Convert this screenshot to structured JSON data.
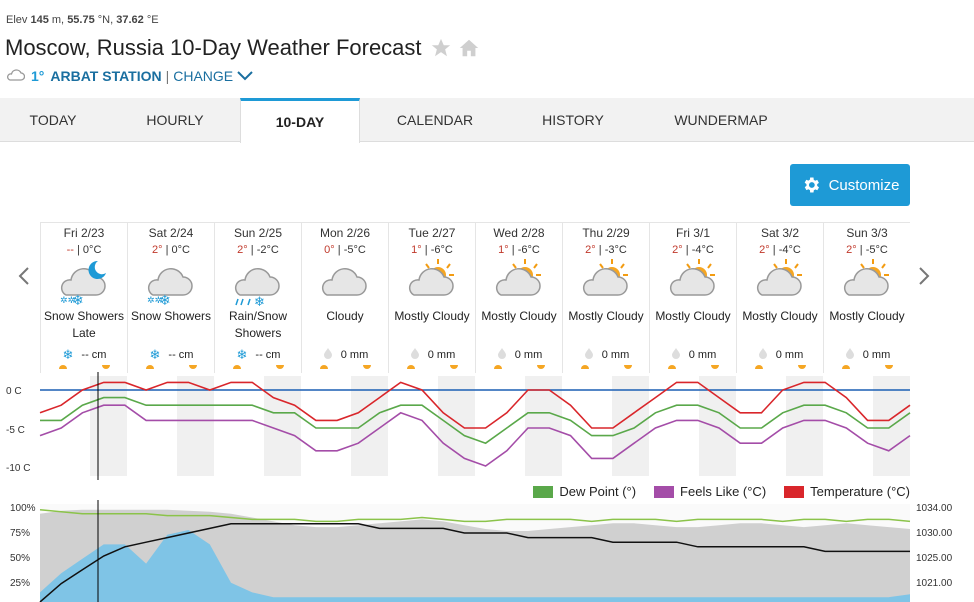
{
  "header": {
    "elev_label": "Elev",
    "elev_value": "145",
    "elev_unit": "m,",
    "lat": "55.75",
    "lat_unit": "°N,",
    "lon": "37.62",
    "lon_unit": "°E",
    "title": "Moscow, Russia 10-Day Weather Forecast",
    "current_temp": "1°",
    "station": "ARBAT STATION",
    "separator": "|",
    "change": "CHANGE"
  },
  "tabs": [
    {
      "label": "TODAY",
      "active": false
    },
    {
      "label": "HOURLY",
      "active": false
    },
    {
      "label": "10-DAY",
      "active": true
    },
    {
      "label": "CALENDAR",
      "active": false
    },
    {
      "label": "HISTORY",
      "active": false
    },
    {
      "label": "WUNDERMAP",
      "active": false
    }
  ],
  "customize_label": "Customize",
  "days": [
    {
      "date": "Fri 2/23",
      "hi": "--",
      "lo": "0°C",
      "icon": "snow-night-icon",
      "cond": "Snow Showers Late",
      "precip_icon": "snowflake-icon",
      "precip": "-- cm"
    },
    {
      "date": "Sat 2/24",
      "hi": "2°",
      "lo": "0°C",
      "icon": "snow-showers-icon",
      "cond": "Snow Showers",
      "precip_icon": "snowflake-icon",
      "precip": "-- cm"
    },
    {
      "date": "Sun 2/25",
      "hi": "2°",
      "lo": "-2°C",
      "icon": "rain-snow-icon",
      "cond": "Rain/Snow Showers",
      "precip_icon": "snowflake-icon",
      "precip": "-- cm"
    },
    {
      "date": "Mon 2/26",
      "hi": "0°",
      "lo": "-5°C",
      "icon": "cloudy-icon",
      "cond": "Cloudy",
      "precip_icon": "raindrop-icon",
      "precip": "0 mm"
    },
    {
      "date": "Tue 2/27",
      "hi": "1°",
      "lo": "-6°C",
      "icon": "mostly-cloudy-icon",
      "cond": "Mostly Cloudy",
      "precip_icon": "raindrop-icon",
      "precip": "0 mm"
    },
    {
      "date": "Wed 2/28",
      "hi": "1°",
      "lo": "-6°C",
      "icon": "mostly-cloudy-icon",
      "cond": "Mostly Cloudy",
      "precip_icon": "raindrop-icon",
      "precip": "0 mm"
    },
    {
      "date": "Thu 2/29",
      "hi": "2°",
      "lo": "-3°C",
      "icon": "mostly-cloudy-icon",
      "cond": "Mostly Cloudy",
      "precip_icon": "raindrop-icon",
      "precip": "0 mm"
    },
    {
      "date": "Fri 3/1",
      "hi": "2°",
      "lo": "-4°C",
      "icon": "mostly-cloudy-icon",
      "cond": "Mostly Cloudy",
      "precip_icon": "raindrop-icon",
      "precip": "0 mm"
    },
    {
      "date": "Sat 3/2",
      "hi": "2°",
      "lo": "-4°C",
      "icon": "mostly-cloudy-icon",
      "cond": "Mostly Cloudy",
      "precip_icon": "raindrop-icon",
      "precip": "0 mm"
    },
    {
      "date": "Sun 3/3",
      "hi": "2°",
      "lo": "-5°C",
      "icon": "mostly-cloudy-icon",
      "cond": "Mostly Cloudy",
      "precip_icon": "raindrop-icon",
      "precip": "0 mm"
    }
  ],
  "temp_axis": [
    "0 C",
    "-5 C",
    "-10 C"
  ],
  "legend": [
    {
      "label": "Dew Point (°)",
      "color": "#5aa84a"
    },
    {
      "label": "Feels Like (°C)",
      "color": "#a44da8"
    },
    {
      "label": "Temperature (°C)",
      "color": "#d9262b"
    }
  ],
  "pct_axis": [
    "100%",
    "75%",
    "50%",
    "25%"
  ],
  "pressure_axis": [
    "1034.00",
    "1030.00",
    "1025.00",
    "1021.00"
  ],
  "colors": {
    "accent": "#1e9ad6",
    "temp": "#d9262b",
    "dew": "#5aa84a",
    "feels": "#a44da8"
  }
}
